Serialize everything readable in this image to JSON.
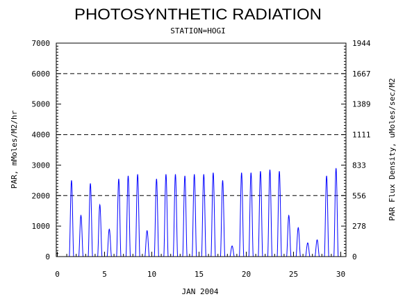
{
  "chart_data": {
    "type": "line",
    "title": "PHOTOSYNTHETIC RADIATION",
    "subtitle": "STATION=HOGI",
    "xlabel": "JAN 2004",
    "ylabel": "PAR, mMoles/M2/hr",
    "y2label": "PAR Flux Density, uMoles/sec/M2",
    "xlim": [
      0,
      30
    ],
    "ylim": [
      0,
      7000
    ],
    "x_ticks": [
      "0",
      "5",
      "10",
      "15",
      "20",
      "25",
      "30"
    ],
    "y_ticks": [
      "0",
      "1000",
      "2000",
      "3000",
      "4000",
      "5000",
      "6000",
      "7000"
    ],
    "y2_ticks": [
      "0",
      "278",
      "556",
      "833",
      "1111",
      "1389",
      "1667",
      "1944"
    ],
    "gridlines_y": [
      2000,
      4000,
      6000
    ],
    "series": [
      {
        "color": "#0000ff",
        "daily_peaks": [
          {
            "day": 1,
            "peak": 2500
          },
          {
            "day": 2,
            "peak": 1350
          },
          {
            "day": 3,
            "peak": 2400
          },
          {
            "day": 4,
            "peak": 1700
          },
          {
            "day": 5,
            "peak": 900
          },
          {
            "day": 6,
            "peak": 2550
          },
          {
            "day": 7,
            "peak": 2650
          },
          {
            "day": 8,
            "peak": 2700
          },
          {
            "day": 9,
            "peak": 850
          },
          {
            "day": 10,
            "peak": 2550
          },
          {
            "day": 11,
            "peak": 2700
          },
          {
            "day": 12,
            "peak": 2700
          },
          {
            "day": 13,
            "peak": 2650
          },
          {
            "day": 14,
            "peak": 2700
          },
          {
            "day": 15,
            "peak": 2700
          },
          {
            "day": 16,
            "peak": 2750
          },
          {
            "day": 17,
            "peak": 2500
          },
          {
            "day": 18,
            "peak": 350
          },
          {
            "day": 19,
            "peak": 2750
          },
          {
            "day": 20,
            "peak": 2750
          },
          {
            "day": 21,
            "peak": 2800
          },
          {
            "day": 22,
            "peak": 2850
          },
          {
            "day": 23,
            "peak": 2800
          },
          {
            "day": 24,
            "peak": 1350
          },
          {
            "day": 25,
            "peak": 950
          },
          {
            "day": 26,
            "peak": 450
          },
          {
            "day": 27,
            "peak": 550
          },
          {
            "day": 28,
            "peak": 2650
          },
          {
            "day": 29,
            "peak": 2900
          }
        ]
      }
    ]
  }
}
